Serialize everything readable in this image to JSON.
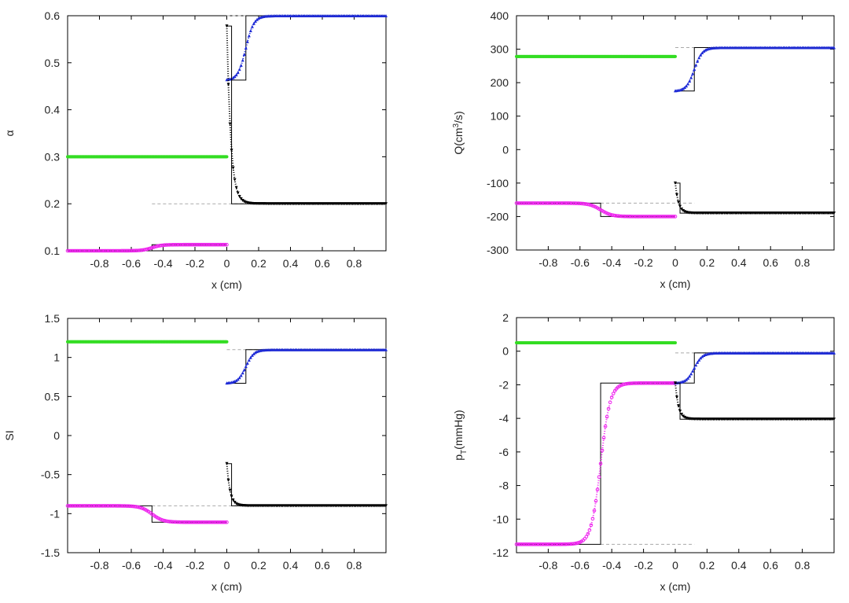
{
  "figure": {
    "background": "#ffffff"
  },
  "styles": {
    "green": "#33dd22",
    "blue": "#1e2bd6",
    "black": "#000000",
    "magenta": "#ee22ee",
    "dashed": "#aaaaaa"
  },
  "chart_data": [
    {
      "id": "alpha",
      "type": "line",
      "xlabel": "x (cm)",
      "ylabel": "α",
      "xlim": [
        -1,
        1
      ],
      "ylim": [
        0.1,
        0.6
      ],
      "xticks": [
        "-0.8",
        "-0.6",
        "-0.4",
        "-0.2",
        "0",
        "0.2",
        "0.4",
        "0.6",
        "0.8"
      ],
      "xtick_values": [
        -0.8,
        -0.6,
        -0.4,
        -0.2,
        0,
        0.2,
        0.4,
        0.6,
        0.8
      ],
      "yticks": [
        "0.1",
        "0.2",
        "0.3",
        "0.4",
        "0.5",
        "0.6"
      ],
      "ytick_values": [
        0.1,
        0.2,
        0.3,
        0.4,
        0.5,
        0.6
      ],
      "series": [
        {
          "name": "green",
          "color_key": "green",
          "kind": "const",
          "x0": -1,
          "x1": 0,
          "y": 0.3
        },
        {
          "name": "magenta",
          "color_key": "magenta",
          "kind": "sigmoid",
          "x0": -1,
          "x1": 0,
          "yL": 0.1,
          "yR": 0.113,
          "center": -0.47,
          "width": 0.03,
          "exact_x": -0.47
        },
        {
          "name": "blue",
          "color_key": "blue",
          "kind": "sigmoid",
          "x0": 0,
          "x1": 1,
          "yL": 0.463,
          "yR": 0.6,
          "center": 0.12,
          "width": 0.025,
          "exact_x": 0.12
        },
        {
          "name": "black",
          "color_key": "black",
          "kind": "decay",
          "x0": 0,
          "x1": 1,
          "yStart": 0.578,
          "yEnd": 0.2,
          "drop": 0.025,
          "exact_x": 0.03
        }
      ],
      "dashed_levels": [
        0.6,
        0.2
      ]
    },
    {
      "id": "flow",
      "type": "line",
      "xlabel": "x (cm)",
      "ylabel_main": "Q(cm",
      "ylabel_sup": "3",
      "ylabel_tail": "/s)",
      "xlim": [
        -1,
        1
      ],
      "ylim": [
        -300,
        400
      ],
      "xticks": [
        "-0.8",
        "-0.6",
        "-0.4",
        "-0.2",
        "0",
        "0.2",
        "0.4",
        "0.6",
        "0.8"
      ],
      "xtick_values": [
        -0.8,
        -0.6,
        -0.4,
        -0.2,
        0,
        0.2,
        0.4,
        0.6,
        0.8
      ],
      "yticks": [
        "-300",
        "-200",
        "-100",
        "0",
        "100",
        "200",
        "300",
        "400"
      ],
      "ytick_values": [
        -300,
        -200,
        -100,
        0,
        100,
        200,
        300,
        400
      ],
      "series": [
        {
          "name": "green",
          "color_key": "green",
          "kind": "const",
          "x0": -1,
          "x1": 0,
          "y": 278
        },
        {
          "name": "magenta",
          "color_key": "magenta",
          "kind": "sigmoid",
          "x0": -1,
          "x1": 0,
          "yL": -160,
          "yR": -200,
          "center": -0.47,
          "width": 0.035,
          "exact_x": -0.47
        },
        {
          "name": "blue",
          "color_key": "blue",
          "kind": "sigmoid",
          "x0": 0,
          "x1": 1,
          "yL": 175,
          "yR": 305,
          "center": 0.12,
          "width": 0.025,
          "exact_x": 0.12
        },
        {
          "name": "black",
          "color_key": "black",
          "kind": "decay",
          "x0": 0,
          "x1": 1,
          "yStart": -100,
          "yEnd": -190,
          "drop": 0.02,
          "exact_x": 0.03
        }
      ],
      "dashed_levels": [
        305,
        -160
      ]
    },
    {
      "id": "si",
      "type": "line",
      "xlabel": "x (cm)",
      "ylabel": "SI",
      "xlim": [
        -1,
        1
      ],
      "ylim": [
        -1.5,
        1.5
      ],
      "xticks": [
        "-0.8",
        "-0.6",
        "-0.4",
        "-0.2",
        "0",
        "0.2",
        "0.4",
        "0.6",
        "0.8"
      ],
      "xtick_values": [
        -0.8,
        -0.6,
        -0.4,
        -0.2,
        0,
        0.2,
        0.4,
        0.6,
        0.8
      ],
      "yticks": [
        "-1.5",
        "-1",
        "-0.5",
        "0",
        "0.5",
        "1",
        "1.5"
      ],
      "ytick_values": [
        -1.5,
        -1,
        -0.5,
        0,
        0.5,
        1,
        1.5
      ],
      "series": [
        {
          "name": "green",
          "color_key": "green",
          "kind": "const",
          "x0": -1,
          "x1": 0,
          "y": 1.2
        },
        {
          "name": "magenta",
          "color_key": "magenta",
          "kind": "sigmoid",
          "x0": -1,
          "x1": 0,
          "yL": -0.9,
          "yR": -1.11,
          "center": -0.47,
          "width": 0.035,
          "exact_x": -0.47
        },
        {
          "name": "blue",
          "color_key": "blue",
          "kind": "sigmoid",
          "x0": 0,
          "x1": 1,
          "yL": 0.67,
          "yR": 1.1,
          "center": 0.12,
          "width": 0.025,
          "exact_x": 0.12
        },
        {
          "name": "black",
          "color_key": "black",
          "kind": "decay",
          "x0": 0,
          "x1": 1,
          "yStart": -0.36,
          "yEnd": -0.9,
          "drop": 0.02,
          "exact_x": 0.03
        }
      ],
      "dashed_levels": [
        1.1,
        -0.9
      ]
    },
    {
      "id": "pressure",
      "type": "line",
      "xlabel": "x (cm)",
      "ylabel_main": "p",
      "ylabel_sub": "T",
      "ylabel_tail": "(mmHg)",
      "xlim": [
        -1,
        1
      ],
      "ylim": [
        -12,
        2
      ],
      "xticks": [
        "-0.8",
        "-0.6",
        "-0.4",
        "-0.2",
        "0",
        "0.2",
        "0.4",
        "0.6",
        "0.8"
      ],
      "xtick_values": [
        -0.8,
        -0.6,
        -0.4,
        -0.2,
        0,
        0.2,
        0.4,
        0.6,
        0.8
      ],
      "yticks": [
        "-12",
        "-10",
        "-8",
        "-6",
        "-4",
        "-2",
        "0",
        "2"
      ],
      "ytick_values": [
        -12,
        -10,
        -8,
        -6,
        -4,
        -2,
        0,
        2
      ],
      "series": [
        {
          "name": "green",
          "color_key": "green",
          "kind": "const",
          "x0": -1,
          "x1": 0,
          "y": 0.5
        },
        {
          "name": "magenta",
          "color_key": "magenta",
          "kind": "sigmoid",
          "x0": -1,
          "x1": 0,
          "yL": -11.5,
          "yR": -1.9,
          "center": -0.47,
          "width": 0.03,
          "exact_x": -0.47
        },
        {
          "name": "blue",
          "color_key": "blue",
          "kind": "sigmoid",
          "x0": 0,
          "x1": 1,
          "yL": -1.9,
          "yR": -0.1,
          "center": 0.12,
          "width": 0.025,
          "exact_x": 0.12
        },
        {
          "name": "black",
          "color_key": "black",
          "kind": "decay",
          "x0": 0,
          "x1": 1,
          "yStart": -1.9,
          "yEnd": -4.05,
          "drop": 0.02,
          "exact_x": 0.03
        }
      ],
      "dashed_levels": [
        -0.1,
        -11.5
      ]
    }
  ]
}
